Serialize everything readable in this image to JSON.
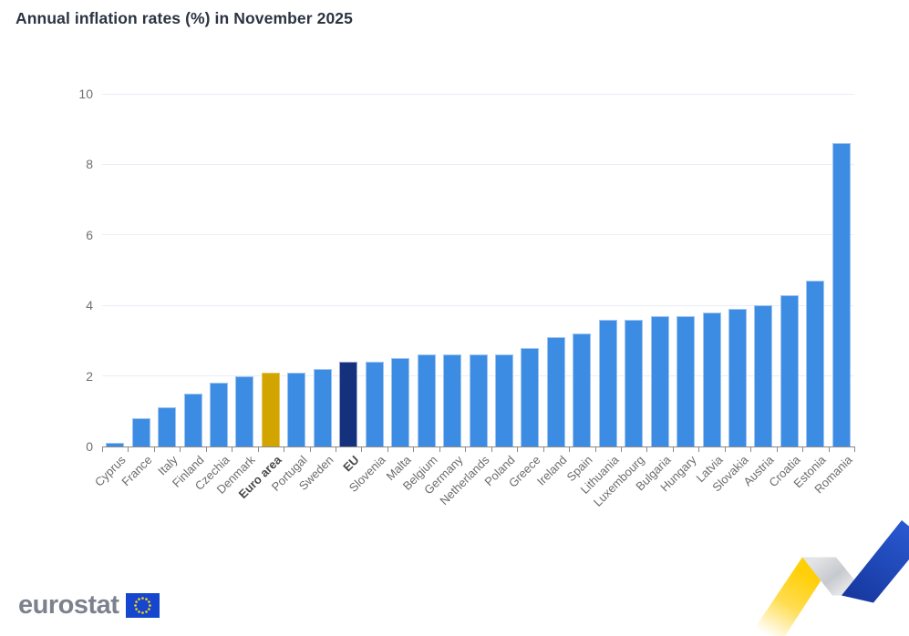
{
  "chart_data": {
    "type": "bar",
    "title": "Annual inflation rates (%) in November 2025",
    "xlabel": "",
    "ylabel": "",
    "categories": [
      "Cyprus",
      "France",
      "Italy",
      "Finland",
      "Czechia",
      "Denmark",
      "Euro area",
      "Portugal",
      "Sweden",
      "EU",
      "Slovenia",
      "Malta",
      "Belgium",
      "Germany",
      "Netherlands",
      "Poland",
      "Greece",
      "Ireland",
      "Spain",
      "Lithuania",
      "Luxembourg",
      "Bulgaria",
      "Hungary",
      "Latvia",
      "Slovakia",
      "Austria",
      "Croatia",
      "Estonia",
      "Romania"
    ],
    "values": [
      0.1,
      0.8,
      1.1,
      1.5,
      1.8,
      2.0,
      2.1,
      2.1,
      2.2,
      2.4,
      2.4,
      2.5,
      2.6,
      2.6,
      2.6,
      2.6,
      2.8,
      3.1,
      3.2,
      3.6,
      3.6,
      3.7,
      3.7,
      3.8,
      3.9,
      4.0,
      4.3,
      4.7,
      8.6
    ],
    "bold_categories": [
      "Euro area",
      "EU"
    ],
    "highlights": {
      "Euro area": "euro_area",
      "EU": "eu"
    },
    "ylim": [
      0,
      10
    ],
    "yticks": [
      0,
      2,
      4,
      6,
      8,
      10
    ],
    "grid": "horizontal",
    "legend": "none",
    "x_tick_label_rotation_deg": -45
  },
  "footer": {
    "logo_text": "eurostat"
  },
  "icons": {
    "flag": "eu-flag-icon",
    "ribbon": "eurostat-zigzag-ribbon-icon"
  },
  "colors": {
    "title": "#2b3442",
    "bar_default": "#3d8ce4",
    "bar_default_border": "#9dc4f0",
    "bar_euro_area": "#d2a400",
    "bar_euro_area_border": "#e5c75e",
    "bar_eu": "#15317e",
    "bar_eu_border": "#96a6d0",
    "gridline": "#e9edf6",
    "axis_line": "#8a8a8a",
    "tick_label": "#707070",
    "category_label": "#6c6c6c",
    "category_label_bold": "#474747",
    "logo_gray": "#7c828d",
    "flag_blue": "#1546cd",
    "flag_stars": "#ffd617",
    "ribbon_yellow": "#ffce00",
    "ribbon_silver": "#c9ccd1",
    "ribbon_blue": "#1c4cc4"
  }
}
